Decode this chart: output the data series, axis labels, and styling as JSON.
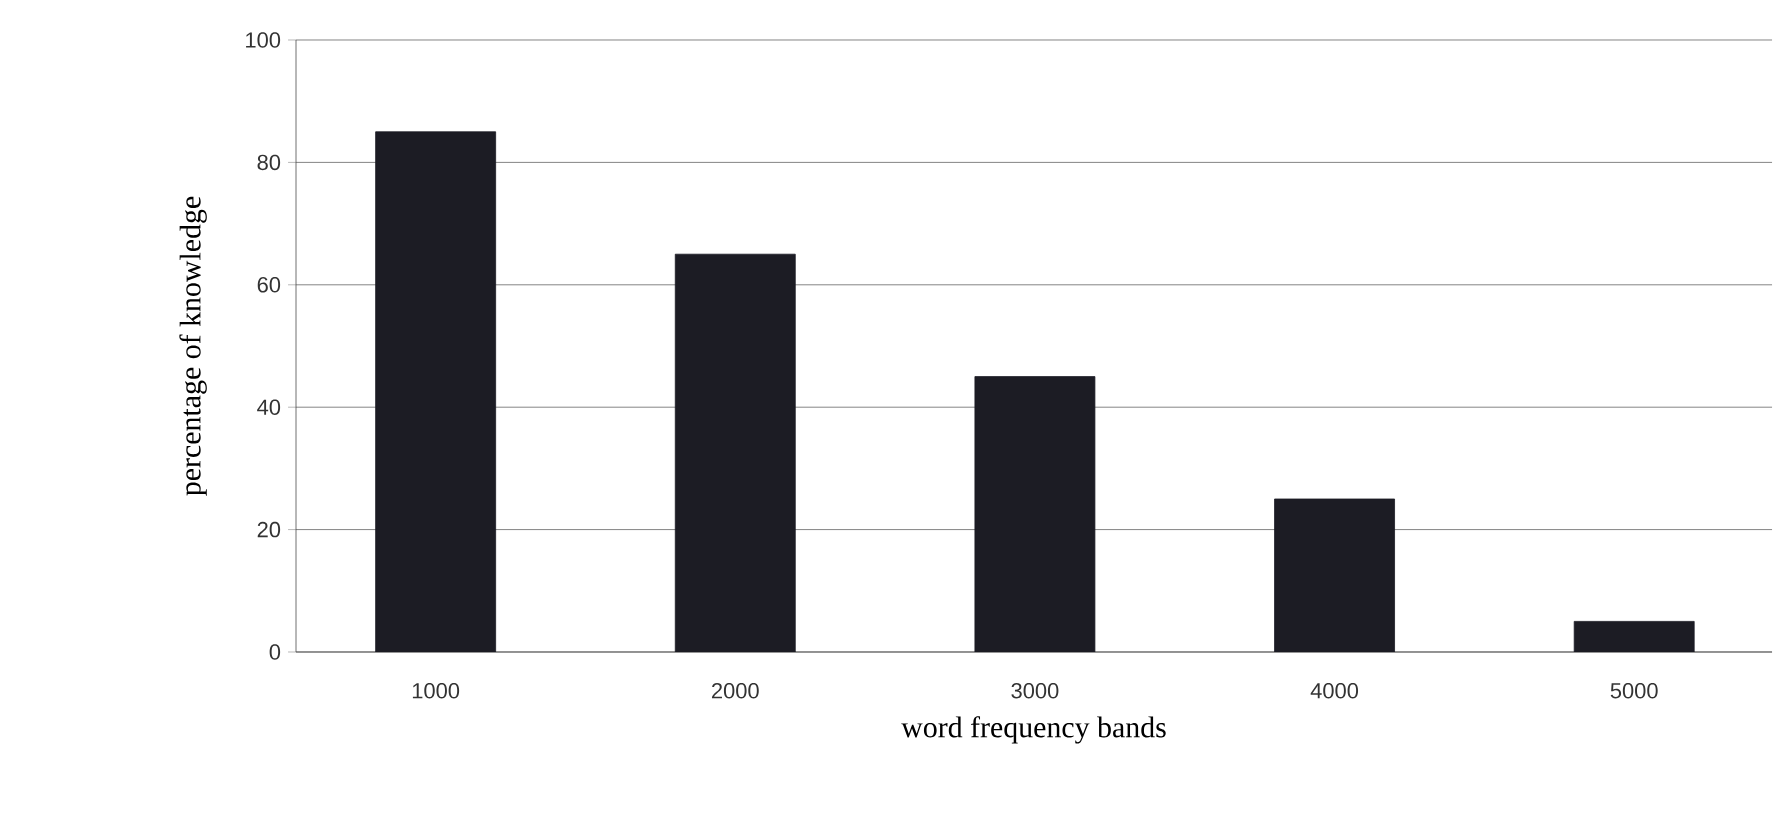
{
  "chart_data": {
    "type": "bar",
    "xlabel": "word frequency bands",
    "ylabel": "percentage of knowledge",
    "categories": [
      "1000",
      "2000",
      "3000",
      "4000",
      "5000"
    ],
    "values": [
      85,
      65,
      45,
      25,
      5
    ],
    "color": "#1c1c24",
    "ylim": [
      0,
      100
    ],
    "yticks": [
      0,
      20,
      40,
      60,
      80,
      100
    ],
    "grid": "y"
  }
}
